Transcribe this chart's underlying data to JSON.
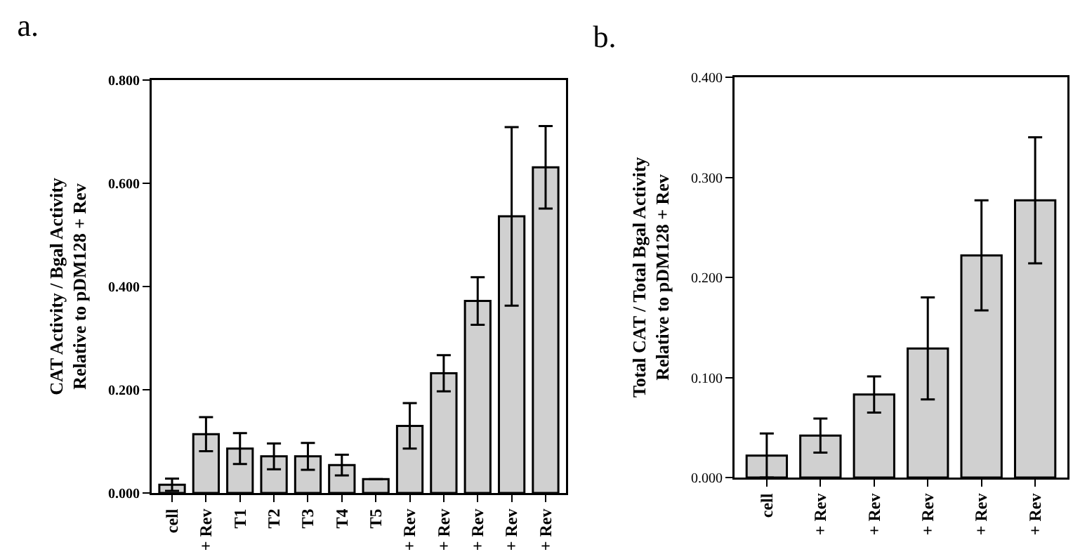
{
  "chart_data": [
    {
      "type": "bar",
      "title": "a.",
      "ylabel": "CAT Activity / Bgal Activity\nRelative to pDM128 + Rev",
      "categories": [
        "cell",
        "+ Rev",
        "T1",
        "T2",
        "T3",
        "T4",
        "T5",
        "+ Rev",
        "+ Rev",
        "+ Rev",
        "+ Rev",
        "+ Rev"
      ],
      "values": [
        0.016,
        0.114,
        0.086,
        0.071,
        0.071,
        0.054,
        0.027,
        0.13,
        0.232,
        0.372,
        0.536,
        0.631
      ],
      "errors": [
        0.012,
        0.033,
        0.03,
        0.025,
        0.026,
        0.02,
        null,
        0.044,
        0.035,
        0.046,
        0.173,
        0.08
      ],
      "color": "#d0d0d0",
      "ylim": [
        0,
        0.8
      ],
      "yticks": [
        {
          "value": 0,
          "label": "0.000"
        },
        {
          "value": 0.2,
          "label": "0.200"
        },
        {
          "value": 0.4,
          "label": "0.400"
        },
        {
          "value": 0.6,
          "label": "0.600"
        },
        {
          "value": 0.8,
          "label": "0.800"
        }
      ],
      "grid": false,
      "legend": false
    },
    {
      "type": "bar",
      "title": "b.",
      "ylabel": "Total CAT / Total Bgal Activity\nRelative to pDM128 + Rev",
      "categories": [
        "cell",
        "+ Rev",
        "+ Rev",
        "+ Rev",
        "+ Rev",
        "+ Rev"
      ],
      "values": [
        0.022,
        0.042,
        0.083,
        0.129,
        0.222,
        0.277
      ],
      "errors": [
        0.022,
        0.017,
        0.018,
        0.051,
        0.055,
        0.063
      ],
      "color": "#d0d0d0",
      "ylim": [
        0,
        0.4
      ],
      "yticks": [
        {
          "value": 0,
          "label": "0.000"
        },
        {
          "value": 0.1,
          "label": "0.100"
        },
        {
          "value": 0.2,
          "label": "0.200"
        },
        {
          "value": 0.3,
          "label": "0.300"
        },
        {
          "value": 0.4,
          "label": "0.400"
        }
      ],
      "grid": false,
      "legend": false
    }
  ]
}
